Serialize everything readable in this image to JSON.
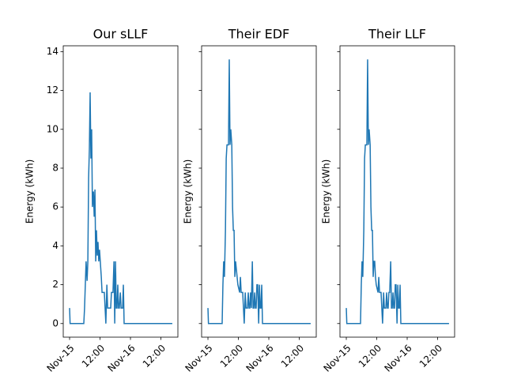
{
  "chart_data": [
    {
      "type": "line",
      "title": "Our sLLF",
      "ylabel": "Energy (kWh)",
      "color": "#1f77b4",
      "x": [
        0,
        0.2,
        5.6,
        5.9,
        6.2,
        6.5,
        6.9,
        7.2,
        7.5,
        7.8,
        8.1,
        8.4,
        8.7,
        9.0,
        9.4,
        9.7,
        10.0,
        10.3,
        10.6,
        10.9,
        11.2,
        11.5,
        11.8,
        12.5,
        12.8,
        13.1,
        13.7,
        14.0,
        14.3,
        14.7,
        15.0,
        15.3,
        15.6,
        15.9,
        16.2,
        16.5,
        16.8,
        17.1,
        17.5,
        17.8,
        18.1,
        18.4,
        18.7,
        19.0,
        19.3,
        19.6,
        20.0,
        20.3,
        20.6,
        20.9,
        21.2,
        21.5,
        21.8,
        40.5
      ],
      "values": [
        0.8,
        0,
        0,
        0.8,
        2,
        3.2,
        2.2,
        3.2,
        7.5,
        9,
        11.9,
        8.5,
        10,
        6,
        6.8,
        5.5,
        6.9,
        3.2,
        4.8,
        3.5,
        4.2,
        3.2,
        3.8,
        2.4,
        1.6,
        1.6,
        1.6,
        0.8,
        0,
        2,
        0.8,
        0.8,
        0.8,
        0.8,
        0.8,
        1.6,
        1.6,
        1.6,
        3.2,
        0,
        3.2,
        0.8,
        0.8,
        2,
        0.8,
        0.8,
        1.6,
        0.8,
        0.8,
        0.8,
        2,
        0,
        0,
        0
      ],
      "xlim": [
        -2.5,
        42.7
      ],
      "xticks": [
        {
          "value": 0,
          "label": "Nov-15"
        },
        {
          "value": 12,
          "label": "12:00"
        },
        {
          "value": 24,
          "label": "Nov-16"
        },
        {
          "value": 36,
          "label": "12:00"
        }
      ],
      "ylim": [
        -0.7,
        14.3
      ],
      "yticks": [
        0,
        2,
        4,
        6,
        8,
        10,
        12,
        14
      ],
      "ytick_labels": true
    },
    {
      "type": "line",
      "title": "Their EDF",
      "ylabel": "Energy (kWh)",
      "color": "#1f77b4",
      "x": [
        0,
        0.2,
        5.6,
        5.9,
        6.2,
        6.5,
        6.9,
        7.2,
        7.5,
        7.8,
        8.1,
        8.4,
        8.7,
        9.0,
        9.4,
        9.7,
        10.0,
        10.3,
        10.6,
        10.9,
        11.2,
        11.5,
        11.8,
        12.5,
        12.8,
        13.1,
        13.7,
        14.0,
        14.3,
        14.7,
        15.0,
        15.3,
        15.6,
        15.9,
        16.2,
        16.5,
        16.8,
        17.1,
        17.5,
        17.8,
        18.1,
        18.4,
        18.7,
        19.0,
        19.3,
        19.6,
        20.0,
        20.3,
        20.6,
        20.9,
        21.2,
        21.5,
        21.8,
        40.5
      ],
      "values": [
        0.8,
        0,
        0,
        2,
        3.2,
        2.4,
        4.8,
        8.5,
        9.2,
        9.2,
        9.2,
        13.6,
        9.2,
        10,
        9.2,
        6,
        4.8,
        4.8,
        2.4,
        3.2,
        2.8,
        2.4,
        2,
        1.6,
        2.4,
        1.6,
        1.6,
        0.8,
        0,
        1.6,
        0.8,
        0.8,
        0.8,
        1.6,
        0.8,
        0.8,
        1.6,
        0.8,
        3.2,
        0.8,
        0.8,
        1.6,
        0.8,
        0.8,
        2,
        2,
        0,
        2,
        0.8,
        0.8,
        2,
        0,
        0,
        0
      ],
      "xlim": [
        -2.5,
        42.7
      ],
      "xticks": [
        {
          "value": 0,
          "label": "Nov-15"
        },
        {
          "value": 12,
          "label": "12:00"
        },
        {
          "value": 24,
          "label": "Nov-16"
        },
        {
          "value": 36,
          "label": "12:00"
        }
      ],
      "ylim": [
        -0.7,
        14.3
      ],
      "yticks": [
        0,
        2,
        4,
        6,
        8,
        10,
        12,
        14
      ],
      "ytick_labels": false
    },
    {
      "type": "line",
      "title": "Their LLF",
      "ylabel": "Energy (kWh)",
      "color": "#1f77b4",
      "x": [
        0,
        0.2,
        5.6,
        5.9,
        6.2,
        6.5,
        6.9,
        7.2,
        7.5,
        7.8,
        8.1,
        8.4,
        8.7,
        9.0,
        9.4,
        9.7,
        10.0,
        10.3,
        10.6,
        10.9,
        11.2,
        11.5,
        11.8,
        12.5,
        12.8,
        13.1,
        13.7,
        14.0,
        14.3,
        14.7,
        15.0,
        15.3,
        15.6,
        15.9,
        16.2,
        16.5,
        16.8,
        17.1,
        17.5,
        17.8,
        18.1,
        18.4,
        18.7,
        19.0,
        19.3,
        19.6,
        20.0,
        20.3,
        20.6,
        20.9,
        21.2,
        21.5,
        21.8,
        40.5
      ],
      "values": [
        0.8,
        0,
        0,
        2,
        3.2,
        2.4,
        4.8,
        8.5,
        9.2,
        9.2,
        9.2,
        13.6,
        9.2,
        10,
        9.2,
        6,
        4.8,
        4.8,
        2.4,
        3.2,
        3.2,
        2.4,
        2,
        1.6,
        2.4,
        1.6,
        1.6,
        0.8,
        0,
        1.6,
        0.8,
        0.8,
        0.8,
        1.6,
        0.8,
        0.8,
        1.6,
        1.6,
        3.2,
        0.8,
        0.8,
        1.6,
        0.8,
        0.8,
        2,
        2,
        0,
        2,
        0.8,
        0.8,
        2,
        0,
        0,
        0
      ],
      "xlim": [
        -2.5,
        42.7
      ],
      "xticks": [
        {
          "value": 0,
          "label": "Nov-15"
        },
        {
          "value": 12,
          "label": "12:00"
        },
        {
          "value": 24,
          "label": "Nov-16"
        },
        {
          "value": 36,
          "label": "12:00"
        }
      ],
      "ylim": [
        -0.7,
        14.3
      ],
      "yticks": [
        0,
        2,
        4,
        6,
        8,
        10,
        12,
        14
      ],
      "ytick_labels": false
    }
  ]
}
